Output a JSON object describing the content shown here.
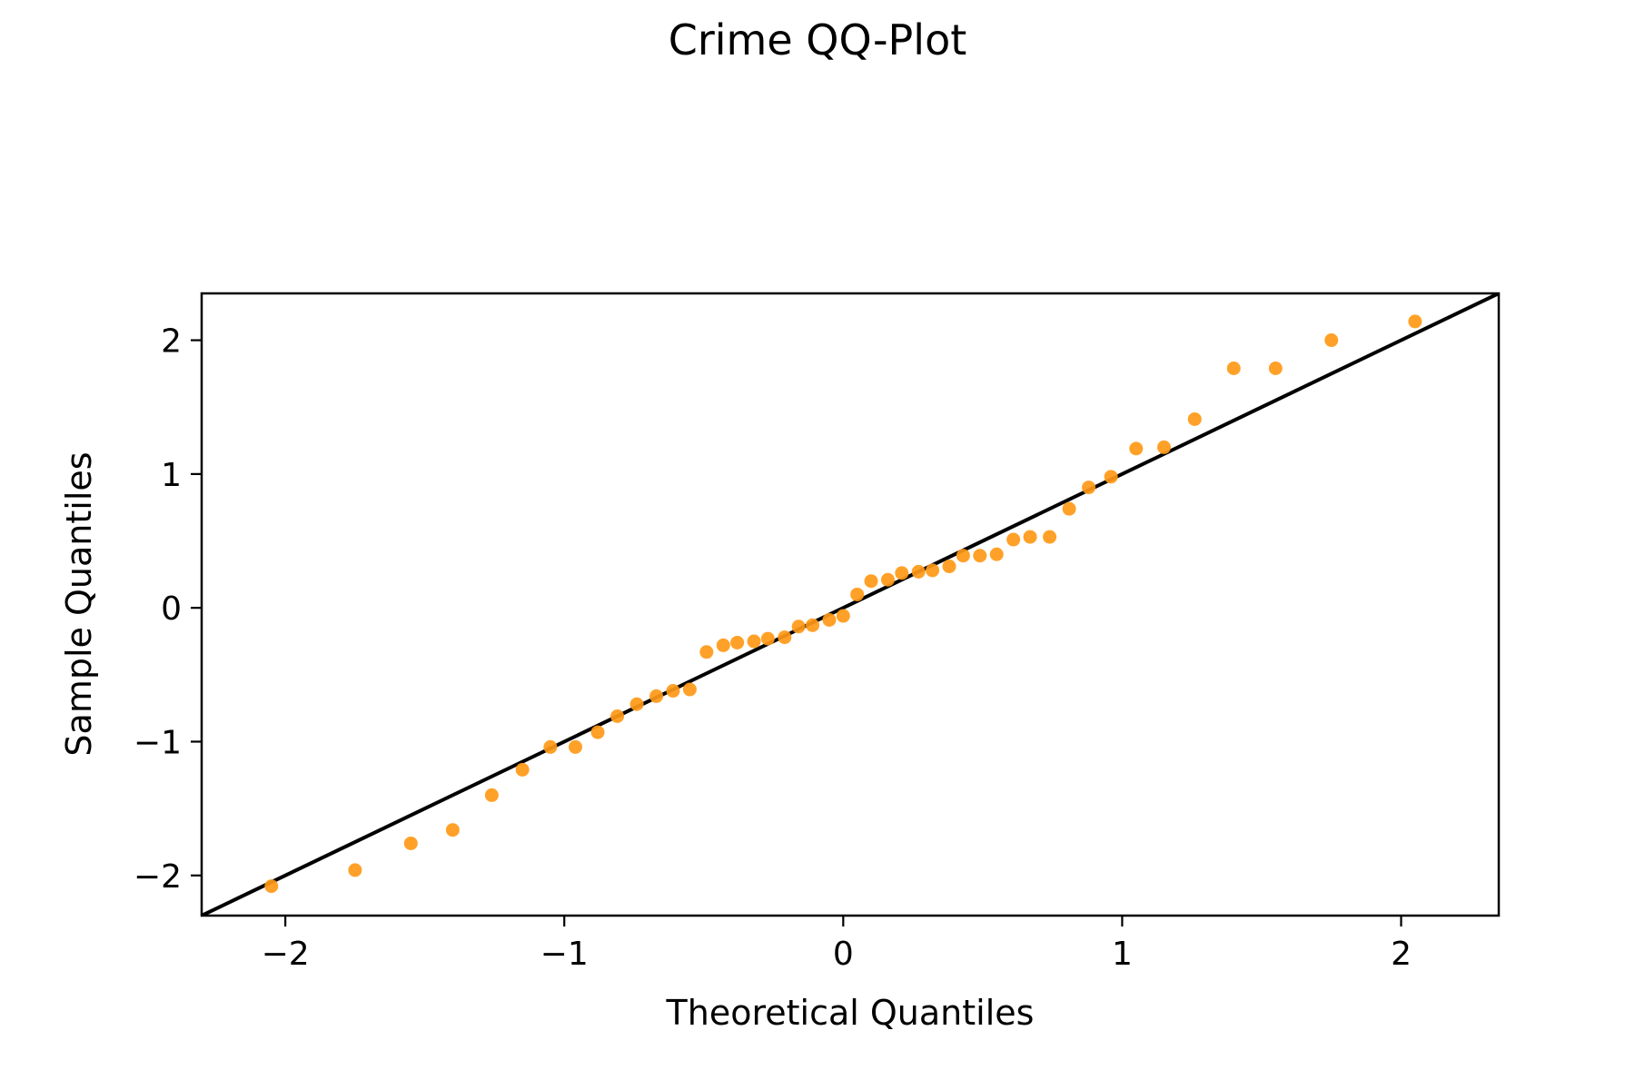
{
  "chart_data": {
    "type": "scatter",
    "title": "Crime QQ-Plot",
    "xlabel": "Theoretical Quantiles",
    "ylabel": "Sample Quantiles",
    "xlim": [
      -2.3,
      2.35
    ],
    "ylim": [
      -2.3,
      2.35
    ],
    "grid": false,
    "x_ticks": [
      -2,
      -1,
      0,
      1,
      2
    ],
    "y_ticks": [
      -2,
      -1,
      0,
      1,
      2
    ],
    "x_tick_labels": [
      "−2",
      "−1",
      "0",
      "1",
      "2"
    ],
    "y_tick_labels": [
      "−2",
      "−1",
      "0",
      "1",
      "2"
    ],
    "point_color": "#ff9916",
    "line_color": "#000000",
    "reference_line": {
      "x": [
        -2.3,
        2.35
      ],
      "y": [
        -2.3,
        2.35
      ]
    },
    "points": {
      "x": [
        -2.05,
        -1.75,
        -1.55,
        -1.4,
        -1.26,
        -1.15,
        -1.05,
        -0.96,
        -0.88,
        -0.81,
        -0.74,
        -0.67,
        -0.61,
        -0.55,
        -0.49,
        -0.43,
        -0.38,
        -0.32,
        -0.27,
        -0.21,
        -0.16,
        -0.11,
        -0.05,
        0.0,
        0.05,
        0.1,
        0.16,
        0.21,
        0.27,
        0.32,
        0.38,
        0.43,
        0.49,
        0.55,
        0.61,
        0.67,
        0.74,
        0.81,
        0.88,
        0.96,
        1.05,
        1.15,
        1.26,
        1.4,
        1.55,
        1.75,
        2.05
      ],
      "y": [
        -2.08,
        -1.96,
        -1.76,
        -1.66,
        -1.4,
        -1.21,
        -1.04,
        -1.04,
        -0.93,
        -0.81,
        -0.72,
        -0.66,
        -0.62,
        -0.61,
        -0.33,
        -0.28,
        -0.26,
        -0.25,
        -0.23,
        -0.22,
        -0.14,
        -0.13,
        -0.09,
        -0.06,
        0.1,
        0.2,
        0.21,
        0.26,
        0.27,
        0.28,
        0.31,
        0.39,
        0.39,
        0.4,
        0.51,
        0.53,
        0.53,
        0.74,
        0.9,
        0.98,
        1.19,
        1.2,
        1.41,
        1.79,
        1.79,
        2.0,
        2.14
      ]
    }
  }
}
